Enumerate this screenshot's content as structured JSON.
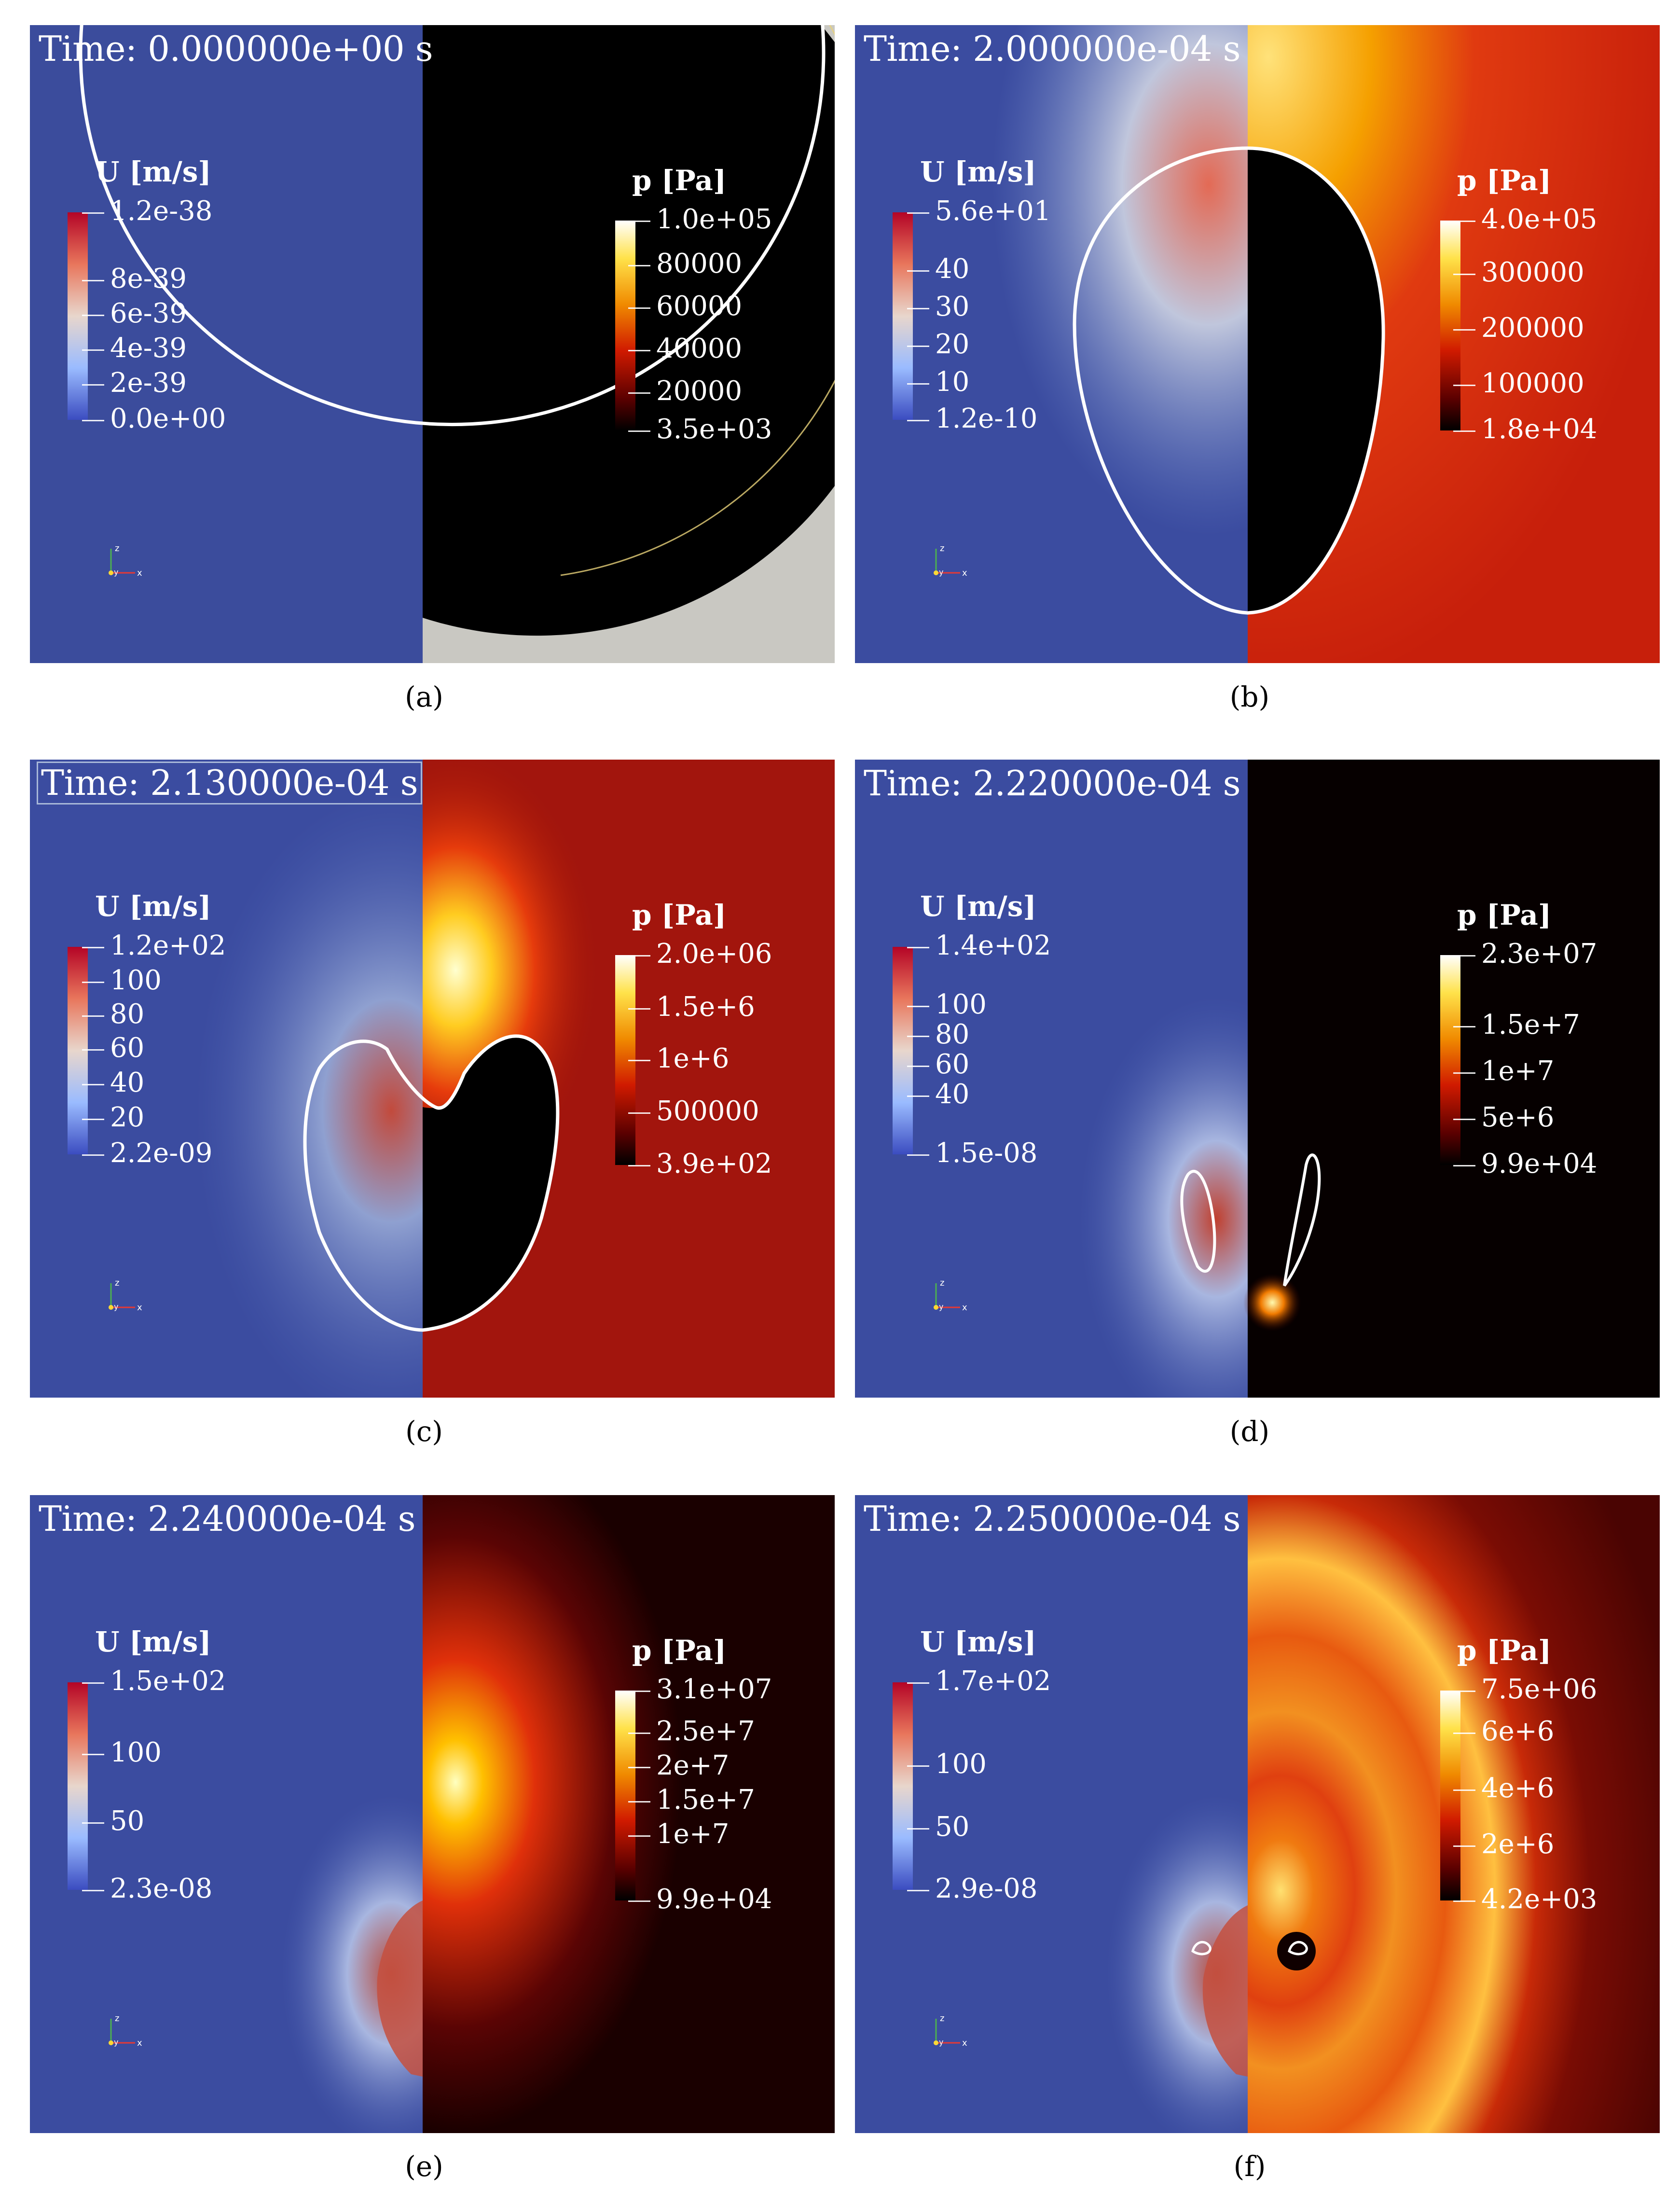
{
  "panels": [
    {
      "id": "a",
      "caption": "(a)",
      "time": "Time: 0.000000e+00 s",
      "u_bar": {
        "title": "U [m/s]",
        "ticks": [
          "1.2e-38",
          "8e-39",
          "6e-39",
          "4e-39",
          "2e-39",
          "0.0e+00"
        ]
      },
      "p_bar": {
        "title": "p [Pa]",
        "ticks": [
          "1.0e+05",
          "80000",
          "60000",
          "40000",
          "20000",
          "3.5e+03"
        ]
      }
    },
    {
      "id": "b",
      "caption": "(b)",
      "time": "Time: 2.000000e-04 s",
      "u_bar": {
        "title": "U [m/s]",
        "ticks": [
          "5.6e+01",
          "40",
          "30",
          "20",
          "10",
          "1.2e-10"
        ]
      },
      "p_bar": {
        "title": "p [Pa]",
        "ticks": [
          "4.0e+05",
          "300000",
          "200000",
          "100000",
          "1.8e+04"
        ]
      }
    },
    {
      "id": "c",
      "caption": "(c)",
      "time": "Time: 2.130000e-04 s",
      "u_bar": {
        "title": "U [m/s]",
        "ticks": [
          "1.2e+02",
          "100",
          "80",
          "60",
          "40",
          "20",
          "2.2e-09"
        ]
      },
      "p_bar": {
        "title": "p [Pa]",
        "ticks": [
          "2.0e+06",
          "1.5e+6",
          "1e+6",
          "500000",
          "3.9e+02"
        ]
      }
    },
    {
      "id": "d",
      "caption": "(d)",
      "time": "Time: 2.220000e-04 s",
      "u_bar": {
        "title": "U [m/s]",
        "ticks": [
          "1.4e+02",
          "100",
          "80",
          "60",
          "40",
          "1.5e-08"
        ]
      },
      "p_bar": {
        "title": "p [Pa]",
        "ticks": [
          "2.3e+07",
          "1.5e+7",
          "1e+7",
          "5e+6",
          "9.9e+04"
        ]
      }
    },
    {
      "id": "e",
      "caption": "(e)",
      "time": "Time: 2.240000e-04 s",
      "u_bar": {
        "title": "U [m/s]",
        "ticks": [
          "1.5e+02",
          "100",
          "50",
          "2.3e-08"
        ]
      },
      "p_bar": {
        "title": "p [Pa]",
        "ticks": [
          "3.1e+07",
          "2.5e+7",
          "2e+7",
          "1.5e+7",
          "1e+7",
          "9.9e+04"
        ]
      }
    },
    {
      "id": "f",
      "caption": "(f)",
      "time": "Time: 2.250000e-04 s",
      "u_bar": {
        "title": "U [m/s]",
        "ticks": [
          "1.7e+02",
          "100",
          "50",
          "2.9e-08"
        ]
      },
      "p_bar": {
        "title": "p [Pa]",
        "ticks": [
          "7.5e+06",
          "6e+6",
          "4e+6",
          "2e+6",
          "4.2e+03"
        ]
      }
    }
  ],
  "axes_labels": {
    "z": "z",
    "y": "y",
    "x": "x"
  },
  "colors": {
    "blue_field": "#3b4ca0",
    "dark_red": "#8a0c06",
    "white": "#ffffff"
  }
}
